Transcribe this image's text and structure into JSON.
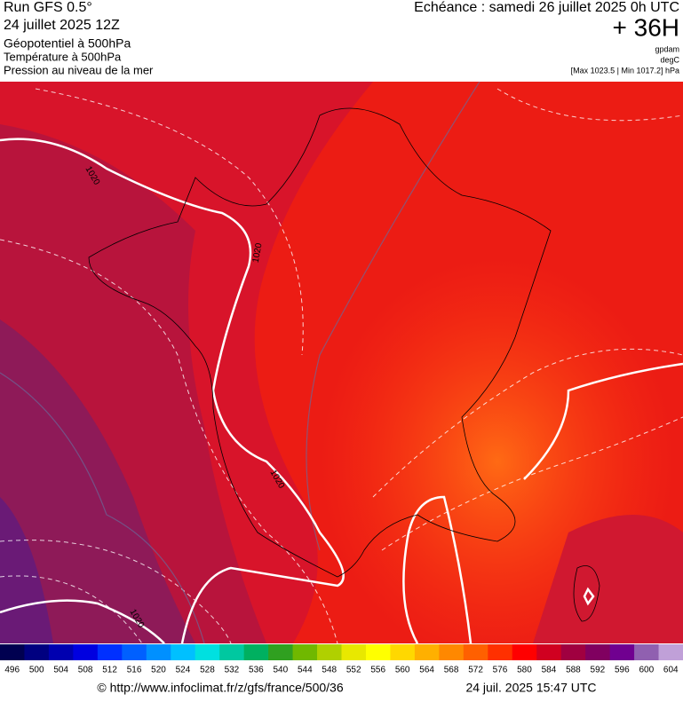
{
  "header": {
    "run": "Run GFS 0.5°",
    "date": "24 juillet 2025 12Z",
    "field1": "Géopotentiel à 500hPa",
    "field2": "Température à 500hPa",
    "field3": "Pression au niveau de la mer",
    "forecast": "Echéance : samedi 26 juillet 2025 0h UTC",
    "lead": "+ 36H",
    "unit1": "gpdam",
    "unit2": "degC",
    "pressure_range": "[Max 1023.5 | Min 1017.2] hPa"
  },
  "map": {
    "isobar_labels": [
      "1020",
      "1020",
      "1020",
      "1020"
    ]
  },
  "colorbar": {
    "labels": [
      496,
      500,
      504,
      508,
      512,
      516,
      520,
      524,
      528,
      532,
      536,
      540,
      544,
      548,
      552,
      556,
      560,
      564,
      568,
      572,
      576,
      580,
      584,
      588,
      592,
      596,
      600,
      604
    ],
    "colors": [
      "#000050",
      "#000080",
      "#0000b0",
      "#0000e0",
      "#0030ff",
      "#0060ff",
      "#0090ff",
      "#00c0ff",
      "#00e0e0",
      "#00c8a0",
      "#00b060",
      "#30a020",
      "#70b800",
      "#b0d000",
      "#e8e800",
      "#ffff00",
      "#ffd800",
      "#ffb000",
      "#ff8800",
      "#ff6000",
      "#ff3000",
      "#ff0000",
      "#d00020",
      "#a00040",
      "#800060",
      "#700090",
      "#9060b0",
      "#c0a0d8"
    ]
  },
  "footer": {
    "source": "© http://www.infoclimat.fr/z/gfs/france/500/36",
    "timestamp": "24 juil. 2025 15:47 UTC"
  }
}
